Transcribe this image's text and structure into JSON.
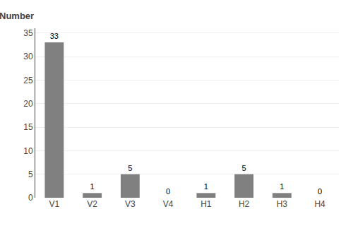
{
  "chart_data": {
    "type": "bar",
    "ylabel": "Number",
    "categories": [
      "V1",
      "V2",
      "V3",
      "V4",
      "H1",
      "H2",
      "H3",
      "H4"
    ],
    "values": [
      33,
      1,
      5,
      0,
      1,
      5,
      1,
      0
    ],
    "color": "#808080",
    "ylim": [
      0,
      36
    ],
    "yticks": [
      0,
      5,
      10,
      15,
      20,
      25,
      30,
      35
    ],
    "grid": true,
    "data_labels": true
  }
}
